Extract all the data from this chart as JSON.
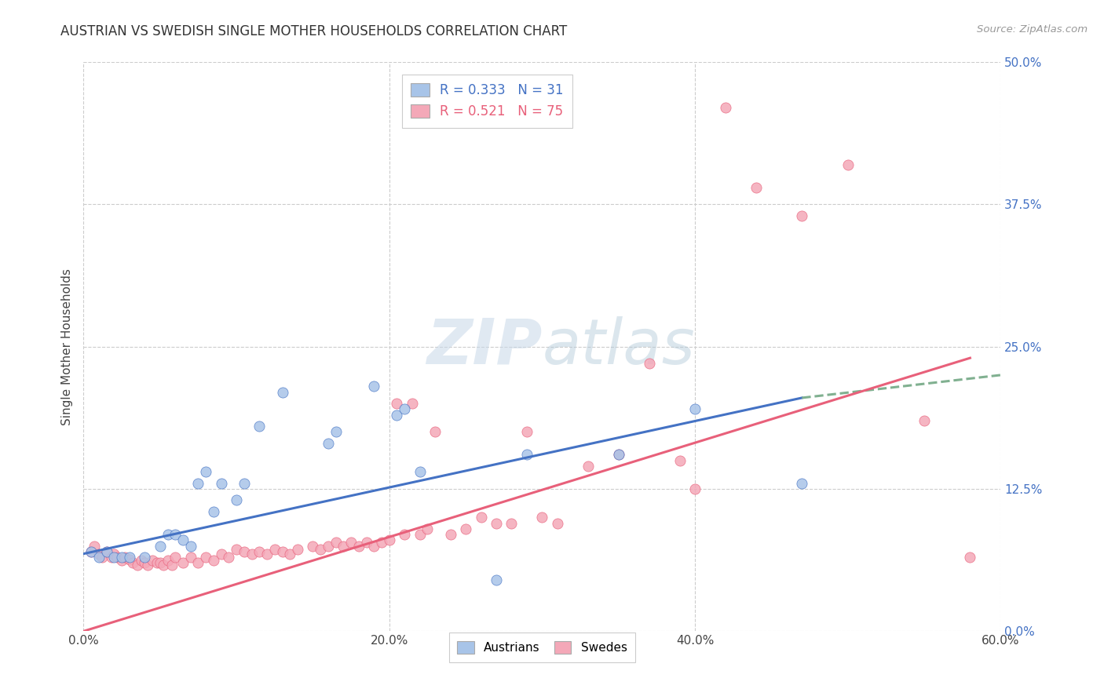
{
  "title": "AUSTRIAN VS SWEDISH SINGLE MOTHER HOUSEHOLDS CORRELATION CHART",
  "source": "Source: ZipAtlas.com",
  "ylabel_label": "Single Mother Households",
  "xlim": [
    0.0,
    0.6
  ],
  "ylim": [
    0.0,
    0.5
  ],
  "xtick_labels": [
    "0.0%",
    "20.0%",
    "40.0%",
    "60.0%"
  ],
  "xtick_values": [
    0.0,
    0.2,
    0.4,
    0.6
  ],
  "ytick_labels": [
    "0.0%",
    "12.5%",
    "25.0%",
    "37.5%",
    "50.0%"
  ],
  "ytick_values": [
    0.0,
    0.125,
    0.25,
    0.375,
    0.5
  ],
  "grid_color": "#cccccc",
  "watermark_zip": "ZIP",
  "watermark_atlas": "atlas",
  "legend_R_austrians": "0.333",
  "legend_N_austrians": "31",
  "legend_R_swedes": "0.521",
  "legend_N_swedes": "75",
  "austrian_color": "#a8c4e8",
  "swedish_color": "#f4a8b8",
  "trendline_austrian_color": "#4472c4",
  "trendline_swedish_color": "#e8607a",
  "trendline_austrian_dashed_color": "#80b090",
  "background_color": "#ffffff",
  "austrians_x": [
    0.005,
    0.01,
    0.015,
    0.02,
    0.025,
    0.03,
    0.04,
    0.05,
    0.055,
    0.06,
    0.065,
    0.07,
    0.075,
    0.08,
    0.085,
    0.09,
    0.1,
    0.105,
    0.115,
    0.13,
    0.16,
    0.165,
    0.19,
    0.205,
    0.21,
    0.22,
    0.27,
    0.29,
    0.35,
    0.4,
    0.47
  ],
  "austrians_y": [
    0.07,
    0.065,
    0.07,
    0.065,
    0.065,
    0.065,
    0.065,
    0.075,
    0.085,
    0.085,
    0.08,
    0.075,
    0.13,
    0.14,
    0.105,
    0.13,
    0.115,
    0.13,
    0.18,
    0.21,
    0.165,
    0.175,
    0.215,
    0.19,
    0.195,
    0.14,
    0.045,
    0.155,
    0.155,
    0.195,
    0.13
  ],
  "swedes_x": [
    0.005,
    0.007,
    0.01,
    0.012,
    0.015,
    0.018,
    0.02,
    0.022,
    0.025,
    0.027,
    0.03,
    0.032,
    0.035,
    0.038,
    0.04,
    0.042,
    0.045,
    0.048,
    0.05,
    0.052,
    0.055,
    0.058,
    0.06,
    0.065,
    0.07,
    0.075,
    0.08,
    0.085,
    0.09,
    0.095,
    0.1,
    0.105,
    0.11,
    0.115,
    0.12,
    0.125,
    0.13,
    0.135,
    0.14,
    0.15,
    0.155,
    0.16,
    0.165,
    0.17,
    0.175,
    0.18,
    0.185,
    0.19,
    0.195,
    0.2,
    0.205,
    0.21,
    0.215,
    0.22,
    0.225,
    0.23,
    0.24,
    0.25,
    0.26,
    0.27,
    0.28,
    0.29,
    0.3,
    0.31,
    0.33,
    0.35,
    0.37,
    0.39,
    0.4,
    0.42,
    0.44,
    0.47,
    0.5,
    0.55,
    0.58
  ],
  "swedes_y": [
    0.07,
    0.075,
    0.068,
    0.065,
    0.07,
    0.065,
    0.068,
    0.065,
    0.062,
    0.065,
    0.063,
    0.06,
    0.058,
    0.062,
    0.06,
    0.058,
    0.062,
    0.06,
    0.06,
    0.058,
    0.062,
    0.058,
    0.065,
    0.06,
    0.065,
    0.06,
    0.065,
    0.062,
    0.068,
    0.065,
    0.072,
    0.07,
    0.068,
    0.07,
    0.068,
    0.072,
    0.07,
    0.068,
    0.072,
    0.075,
    0.072,
    0.075,
    0.078,
    0.075,
    0.078,
    0.075,
    0.078,
    0.075,
    0.078,
    0.08,
    0.2,
    0.085,
    0.2,
    0.085,
    0.09,
    0.175,
    0.085,
    0.09,
    0.1,
    0.095,
    0.095,
    0.175,
    0.1,
    0.095,
    0.145,
    0.155,
    0.235,
    0.15,
    0.125,
    0.46,
    0.39,
    0.365,
    0.41,
    0.185,
    0.065
  ],
  "trendline_austrian_x_start": 0.0,
  "trendline_austrian_y_start": 0.068,
  "trendline_austrian_x_end": 0.47,
  "trendline_austrian_y_end": 0.205,
  "trendline_austrian_dash_x_end": 0.6,
  "trendline_austrian_dash_y_end": 0.225,
  "trendline_swedish_x_start": 0.0,
  "trendline_swedish_y_start": 0.0,
  "trendline_swedish_x_end": 0.58,
  "trendline_swedish_y_end": 0.24
}
